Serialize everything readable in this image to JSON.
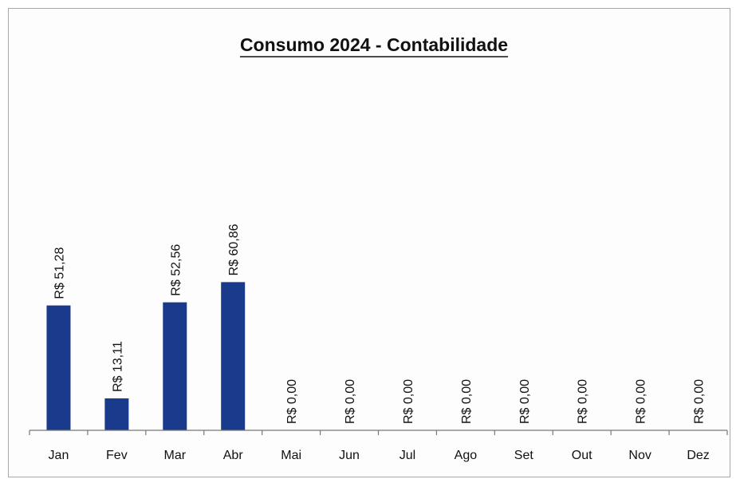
{
  "chart_data": {
    "type": "bar",
    "title": "Consumo 2024 - Contabilidade",
    "xlabel": "",
    "ylabel": "",
    "categories": [
      "Jan",
      "Fev",
      "Mar",
      "Abr",
      "Mai",
      "Jun",
      "Jul",
      "Ago",
      "Set",
      "Out",
      "Nov",
      "Dez"
    ],
    "values": [
      51.28,
      13.11,
      52.56,
      60.86,
      0.0,
      0.0,
      0.0,
      0.0,
      0.0,
      0.0,
      0.0,
      0.0
    ],
    "value_labels": [
      "R$ 51,28",
      "R$ 13,11",
      "R$ 52,56",
      "R$ 60,86",
      "R$ 0,00",
      "R$ 0,00",
      "R$ 0,00",
      "R$ 0,00",
      "R$ 0,00",
      "R$ 0,00",
      "R$ 0,00",
      "R$ 0,00"
    ],
    "ylim": [
      0,
      100
    ],
    "grid": false,
    "legend": "none",
    "bar_color": "#1a3a8c"
  }
}
